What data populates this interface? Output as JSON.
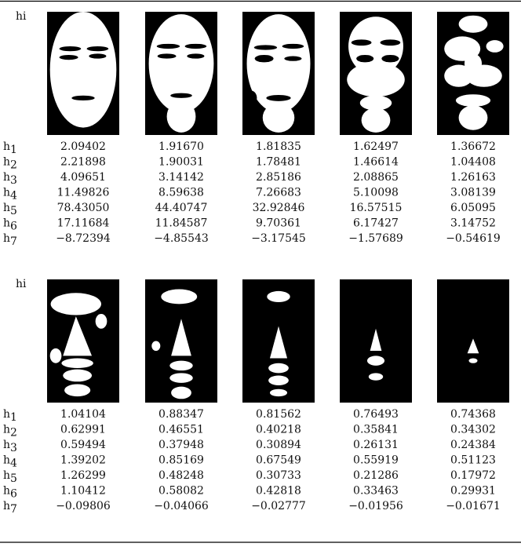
{
  "blocks": [
    {
      "label": "hi",
      "rows": [
        {
          "name": "h",
          "sub": "1",
          "values": [
            "2.09402",
            "1.91670",
            "1.81835",
            "1.62497",
            "1.36672"
          ]
        },
        {
          "name": "h",
          "sub": "2",
          "values": [
            "2.21898",
            "1.90031",
            "1.78481",
            "1.46614",
            "1.04408"
          ]
        },
        {
          "name": "h",
          "sub": "3",
          "values": [
            "4.09651",
            "3.14142",
            "2.85186",
            "2.08865",
            "1.26163"
          ]
        },
        {
          "name": "h",
          "sub": "4",
          "values": [
            "11.49826",
            "8.59638",
            "7.26683",
            "5.10098",
            "3.08139"
          ]
        },
        {
          "name": "h",
          "sub": "5",
          "values": [
            "78.43050",
            "44.40747",
            "32.92846",
            "16.57515",
            "6.05095"
          ]
        },
        {
          "name": "h",
          "sub": "6",
          "values": [
            "17.11684",
            "11.84587",
            "9.70361",
            "6.17427",
            "3.14752"
          ]
        },
        {
          "name": "h",
          "sub": "7",
          "values": [
            "−8.72394",
            "−4.85543",
            "−3.17545",
            "−1.57689",
            "−0.54619"
          ]
        }
      ]
    },
    {
      "label": "hi",
      "rows": [
        {
          "name": "h",
          "sub": "1",
          "values": [
            "1.04104",
            "0.88347",
            "0.81562",
            "0.76493",
            "0.74368"
          ]
        },
        {
          "name": "h",
          "sub": "2",
          "values": [
            "0.62991",
            "0.46551",
            "0.40218",
            "0.35841",
            "0.34302"
          ]
        },
        {
          "name": "h",
          "sub": "3",
          "values": [
            "0.59494",
            "0.37948",
            "0.30894",
            "0.26131",
            "0.24384"
          ]
        },
        {
          "name": "h",
          "sub": "4",
          "values": [
            "1.39202",
            "0.85169",
            "0.67549",
            "0.55919",
            "0.51123"
          ]
        },
        {
          "name": "h",
          "sub": "5",
          "values": [
            "1.26299",
            "0.48248",
            "0.30733",
            "0.21286",
            "0.17972"
          ]
        },
        {
          "name": "h",
          "sub": "6",
          "values": [
            "1.10412",
            "0.58082",
            "0.42818",
            "0.33463",
            "0.29931"
          ]
        },
        {
          "name": "h",
          "sub": "7",
          "values": [
            "−0.09806",
            "−0.04066",
            "−0.02777",
            "−0.01956",
            "−0.01671"
          ]
        }
      ]
    }
  ]
}
